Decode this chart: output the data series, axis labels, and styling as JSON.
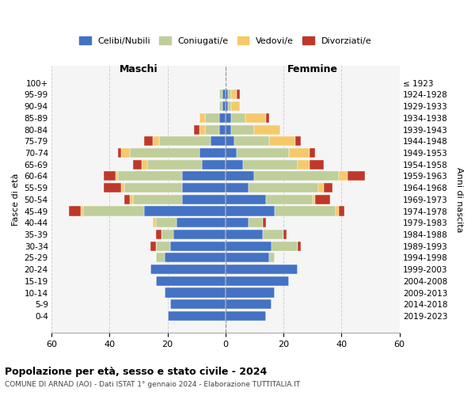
{
  "age_groups": [
    "0-4",
    "5-9",
    "10-14",
    "15-19",
    "20-24",
    "25-29",
    "30-34",
    "35-39",
    "40-44",
    "45-49",
    "50-54",
    "55-59",
    "60-64",
    "65-69",
    "70-74",
    "75-79",
    "80-84",
    "85-89",
    "90-94",
    "95-99",
    "100+"
  ],
  "birth_years": [
    "2019-2023",
    "2014-2018",
    "2009-2013",
    "2004-2008",
    "1999-2003",
    "1994-1998",
    "1989-1993",
    "1984-1988",
    "1979-1983",
    "1974-1978",
    "1969-1973",
    "1964-1968",
    "1959-1963",
    "1954-1958",
    "1949-1953",
    "1944-1948",
    "1939-1943",
    "1934-1938",
    "1929-1933",
    "1924-1928",
    "≤ 1923"
  ],
  "maschi": {
    "celibi": [
      20,
      19,
      21,
      24,
      26,
      21,
      19,
      18,
      17,
      28,
      15,
      15,
      15,
      8,
      9,
      5,
      2,
      2,
      1,
      1,
      0
    ],
    "coniugati": [
      0,
      0,
      0,
      0,
      0,
      3,
      5,
      4,
      7,
      21,
      17,
      20,
      22,
      19,
      24,
      18,
      5,
      5,
      1,
      1,
      0
    ],
    "vedovi": [
      0,
      0,
      0,
      0,
      0,
      0,
      0,
      0,
      1,
      1,
      1,
      1,
      1,
      2,
      3,
      2,
      2,
      2,
      0,
      0,
      0
    ],
    "divorziati": [
      0,
      0,
      0,
      0,
      0,
      0,
      2,
      2,
      0,
      4,
      2,
      6,
      4,
      3,
      1,
      3,
      2,
      0,
      0,
      0,
      0
    ]
  },
  "femmine": {
    "nubili": [
      14,
      16,
      17,
      22,
      25,
      15,
      16,
      13,
      8,
      17,
      14,
      8,
      10,
      6,
      4,
      3,
      2,
      2,
      1,
      1,
      0
    ],
    "coniugate": [
      0,
      0,
      0,
      0,
      0,
      2,
      9,
      7,
      5,
      21,
      16,
      24,
      29,
      19,
      18,
      12,
      8,
      5,
      1,
      1,
      0
    ],
    "vedove": [
      0,
      0,
      0,
      0,
      0,
      0,
      0,
      0,
      0,
      1,
      1,
      2,
      3,
      4,
      7,
      9,
      9,
      7,
      3,
      2,
      0
    ],
    "divorziate": [
      0,
      0,
      0,
      0,
      0,
      0,
      1,
      1,
      1,
      2,
      5,
      3,
      6,
      5,
      2,
      2,
      0,
      1,
      0,
      1,
      0
    ]
  },
  "colors": {
    "celibi": "#4472C4",
    "coniugati": "#BFCE9A",
    "vedovi": "#F5C96B",
    "divorziati": "#C0372A"
  },
  "title": "Popolazione per età, sesso e stato civile - 2024",
  "subtitle": "COMUNE DI ARNAD (AO) - Dati ISTAT 1° gennaio 2024 - Elaborazione TUTTITALIA.IT",
  "xlabel_left": "Maschi",
  "xlabel_right": "Femmine",
  "ylabel_left": "Fasce di età",
  "ylabel_right": "Anni di nascita",
  "xlim": 60,
  "legend_labels": [
    "Celibi/Nubili",
    "Coniugati/e",
    "Vedovi/e",
    "Divorziati/e"
  ],
  "bg_color": "#ffffff",
  "grid_color": "#cccccc"
}
